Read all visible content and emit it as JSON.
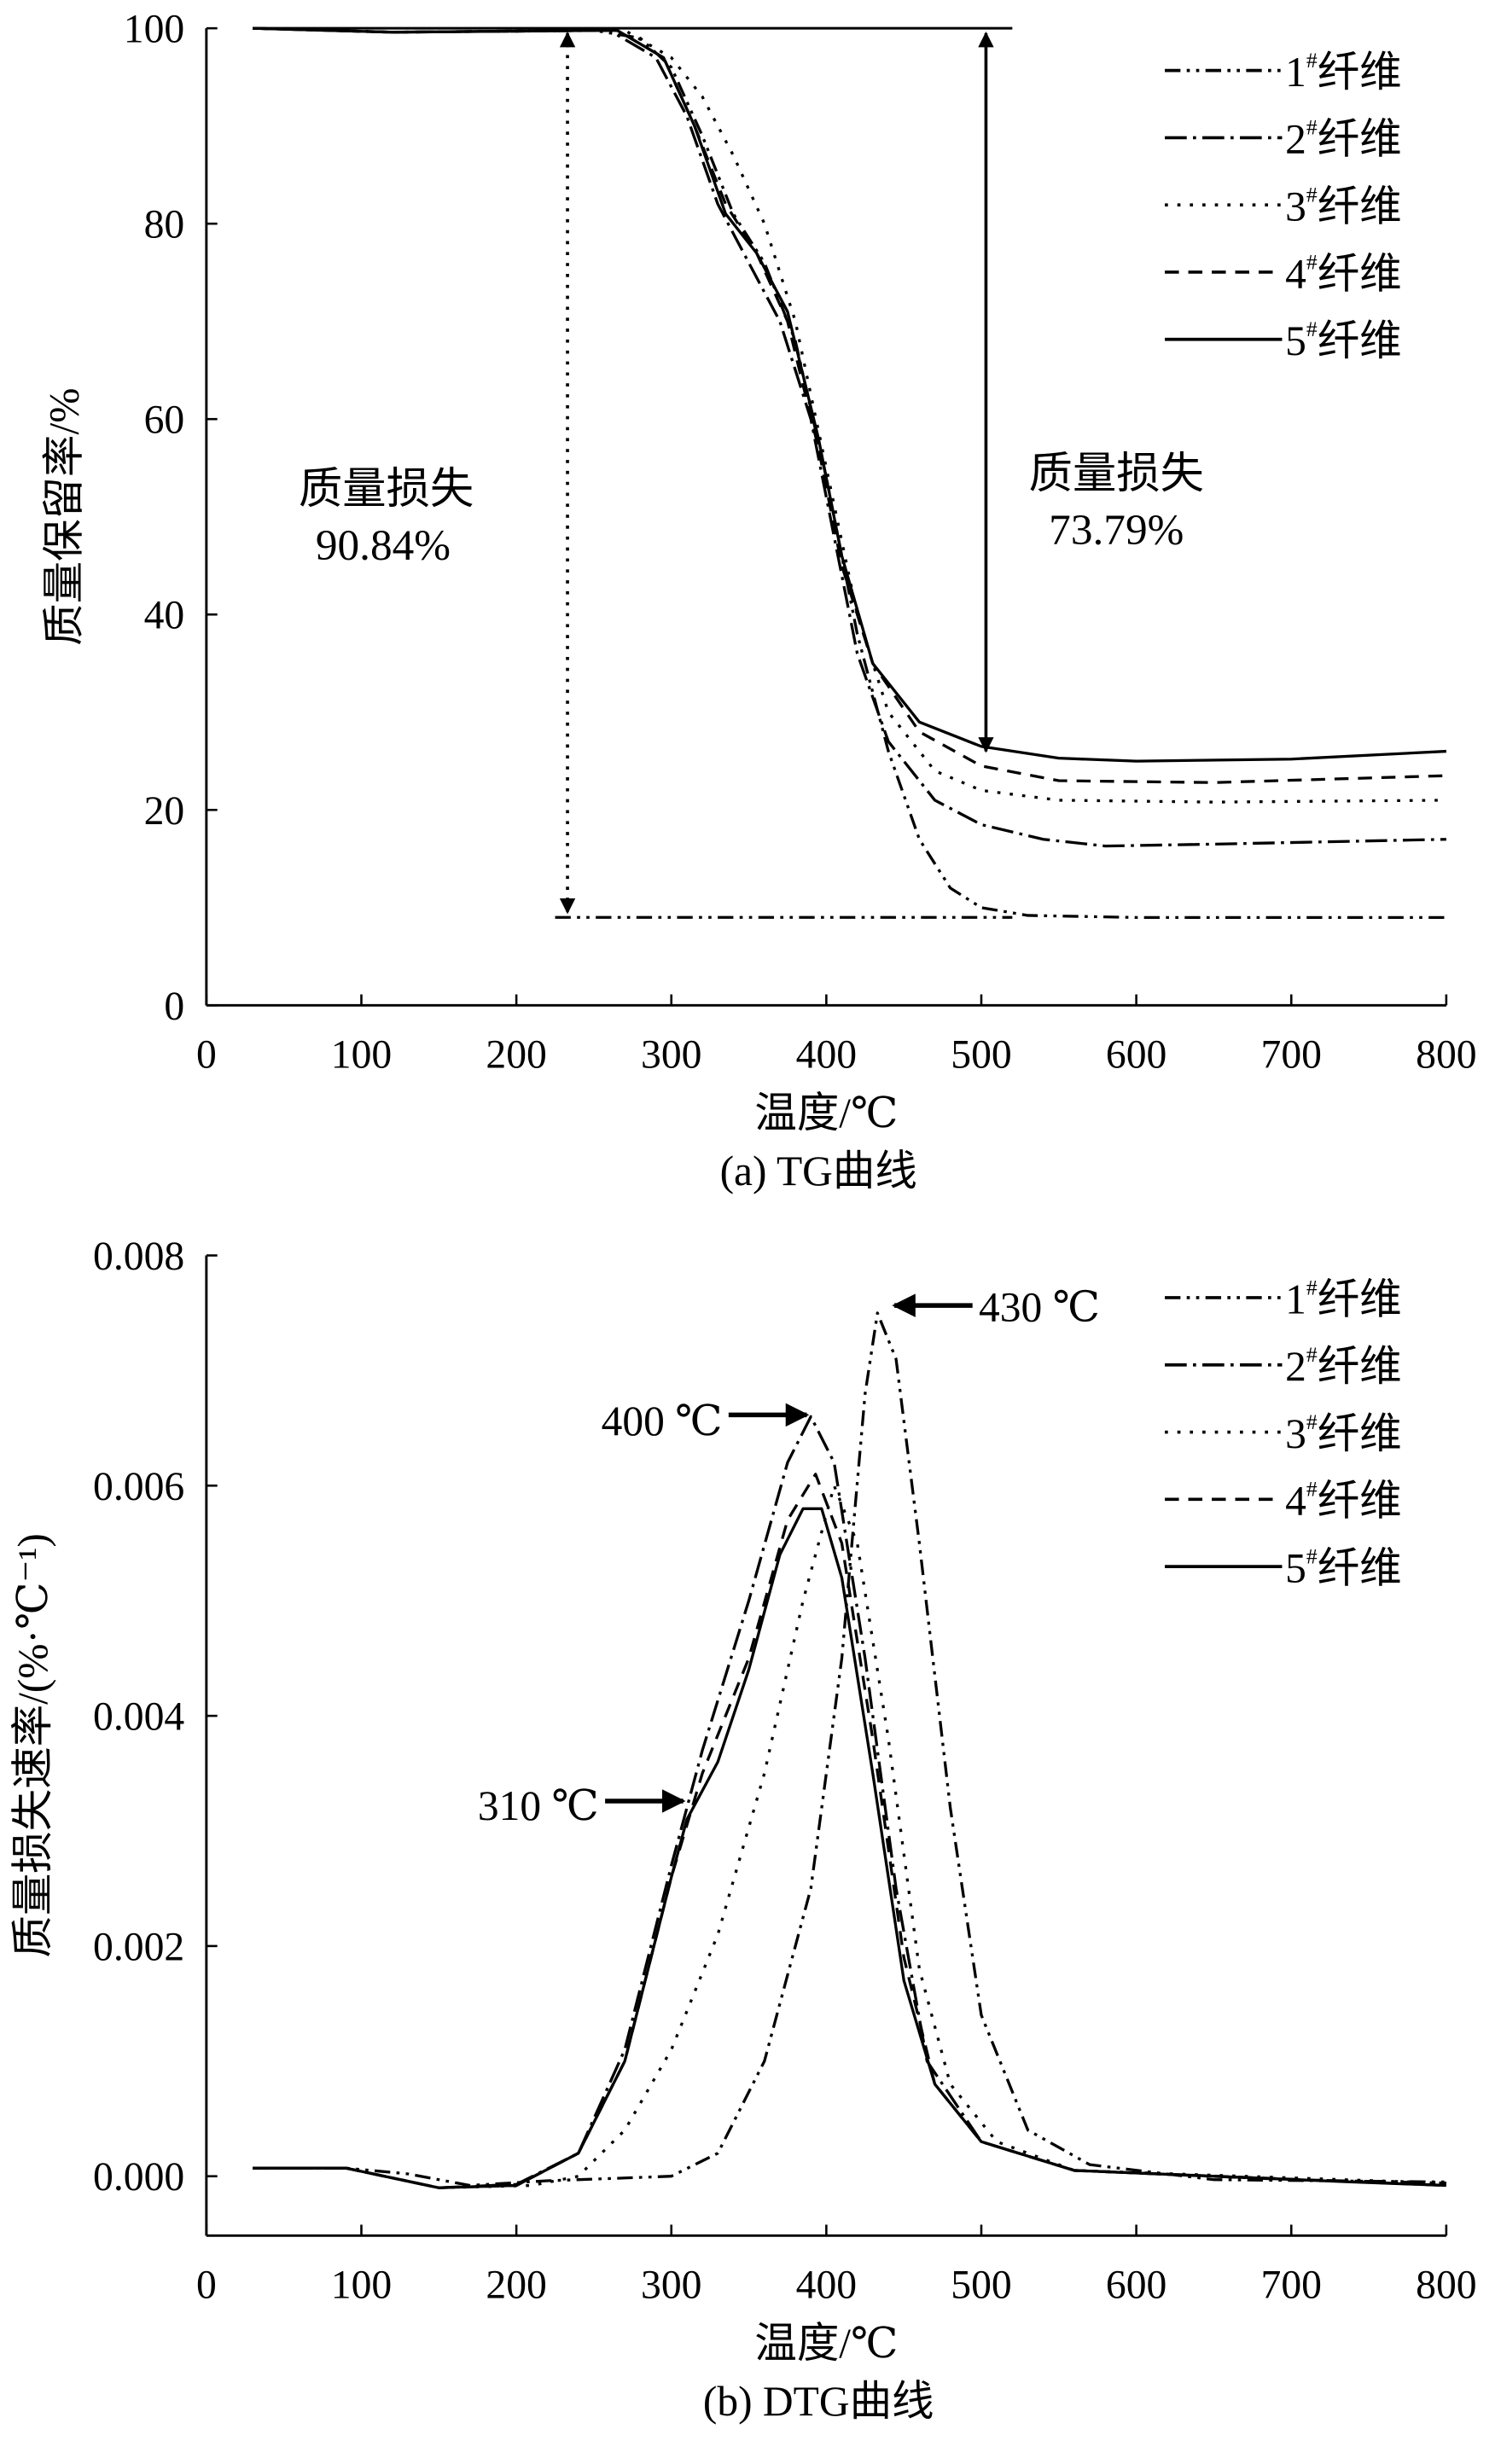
{
  "chart_data": [
    {
      "type": "line",
      "panel": "tg",
      "caption": "(a) TG曲线",
      "xlabel": "温度/℃",
      "ylabel": "质量保留率/%",
      "xlim": [
        0,
        800
      ],
      "ylim": [
        0,
        100
      ],
      "xticks": [
        "0",
        "100",
        "200",
        "300",
        "400",
        "500",
        "600",
        "700",
        "800"
      ],
      "yticks": [
        "0",
        "20",
        "40",
        "60",
        "80",
        "100"
      ],
      "legend": [
        "1#纤维",
        "2#纤维",
        "3#纤维",
        "4#纤维",
        "5#纤维"
      ],
      "legend_position": "top-right",
      "annotations": [
        {
          "title": "质量损失",
          "value": "90.84%"
        },
        {
          "title": "质量损失",
          "value": "73.79%"
        }
      ],
      "series": [
        {
          "name": "1#纤维",
          "points": [
            [
              30,
              100
            ],
            [
              120,
              99.6
            ],
            [
              250,
              99.8
            ],
            [
              280,
              99
            ],
            [
              300,
              96
            ],
            [
              320,
              89
            ],
            [
              340,
              81
            ],
            [
              360,
              76
            ],
            [
              380,
              68
            ],
            [
              400,
              54
            ],
            [
              420,
              38
            ],
            [
              440,
              26
            ],
            [
              460,
              17
            ],
            [
              480,
              12
            ],
            [
              500,
              10
            ],
            [
              530,
              9.2
            ],
            [
              600,
              9
            ],
            [
              800,
              9
            ]
          ]
        },
        {
          "name": "2#纤维",
          "points": [
            [
              30,
              100
            ],
            [
              120,
              99.6
            ],
            [
              260,
              99.8
            ],
            [
              290,
              97
            ],
            [
              310,
              91
            ],
            [
              330,
              82
            ],
            [
              350,
              76
            ],
            [
              370,
              70
            ],
            [
              390,
              60
            ],
            [
              400,
              52
            ],
            [
              420,
              36
            ],
            [
              440,
              27
            ],
            [
              470,
              21
            ],
            [
              500,
              18.5
            ],
            [
              540,
              17
            ],
            [
              580,
              16.3
            ],
            [
              650,
              16.5
            ],
            [
              800,
              17
            ]
          ]
        },
        {
          "name": "3#纤维",
          "points": [
            [
              30,
              100
            ],
            [
              120,
              99.6
            ],
            [
              270,
              99.8
            ],
            [
              300,
              97
            ],
            [
              320,
              93
            ],
            [
              340,
              87
            ],
            [
              360,
              80
            ],
            [
              380,
              70
            ],
            [
              400,
              55
            ],
            [
              420,
              40
            ],
            [
              440,
              30
            ],
            [
              470,
              24
            ],
            [
              500,
              22
            ],
            [
              550,
              21
            ],
            [
              650,
              20.8
            ],
            [
              800,
              21
            ]
          ]
        },
        {
          "name": "4#纤维",
          "points": [
            [
              30,
              100
            ],
            [
              120,
              99.6
            ],
            [
              265,
              99.8
            ],
            [
              295,
              97
            ],
            [
              315,
              90
            ],
            [
              335,
              82
            ],
            [
              355,
              77
            ],
            [
              375,
              70
            ],
            [
              395,
              57
            ],
            [
              410,
              45
            ],
            [
              430,
              35
            ],
            [
              460,
              28
            ],
            [
              500,
              24.5
            ],
            [
              550,
              23
            ],
            [
              650,
              22.8
            ],
            [
              800,
              23.5
            ]
          ]
        },
        {
          "name": "5#纤维",
          "points": [
            [
              30,
              100
            ],
            [
              120,
              99.6
            ],
            [
              265,
              99.8
            ],
            [
              295,
              97
            ],
            [
              315,
              90
            ],
            [
              335,
              81
            ],
            [
              355,
              77
            ],
            [
              375,
              71
            ],
            [
              395,
              58
            ],
            [
              410,
              46
            ],
            [
              430,
              35
            ],
            [
              460,
              29
            ],
            [
              500,
              26.5
            ],
            [
              550,
              25.3
            ],
            [
              600,
              25
            ],
            [
              700,
              25.2
            ],
            [
              800,
              26
            ]
          ]
        }
      ]
    },
    {
      "type": "line",
      "panel": "dtg",
      "caption": "(b) DTG曲线",
      "xlabel": "温度/℃",
      "ylabel": "质量损失速率/(%·℃⁻¹)",
      "xlim": [
        0,
        800
      ],
      "ylim": [
        0,
        0.008
      ],
      "xticks": [
        "0",
        "100",
        "200",
        "300",
        "400",
        "500",
        "600",
        "700",
        "800"
      ],
      "yticks": [
        "0.000",
        "0.002",
        "0.004",
        "0.006",
        "0.008"
      ],
      "legend": [
        "1#纤维",
        "2#纤维",
        "3#纤维",
        "4#纤维",
        "5#纤维"
      ],
      "legend_position": "top-right",
      "annotations": [
        "430 ℃",
        "400 ℃",
        "310 ℃"
      ],
      "series": [
        {
          "name": "1#纤维",
          "points": [
            [
              30,
              7e-05
            ],
            [
              90,
              7e-05
            ],
            [
              130,
              2e-05
            ],
            [
              170,
              -8e-05
            ],
            [
              220,
              -4e-05
            ],
            [
              260,
              -2e-05
            ],
            [
              300,
              0
            ],
            [
              330,
              0.0002
            ],
            [
              360,
              0.001
            ],
            [
              390,
              0.0025
            ],
            [
              410,
              0.0045
            ],
            [
              425,
              0.0068
            ],
            [
              433,
              0.0075
            ],
            [
              445,
              0.0071
            ],
            [
              460,
              0.0055
            ],
            [
              480,
              0.0032
            ],
            [
              500,
              0.0014
            ],
            [
              530,
              0.0004
            ],
            [
              570,
              0.0001
            ],
            [
              650,
              -3e-05
            ],
            [
              800,
              -5e-05
            ]
          ]
        },
        {
          "name": "2#纤维",
          "points": [
            [
              30,
              7e-05
            ],
            [
              90,
              7e-05
            ],
            [
              150,
              -0.0001
            ],
            [
              200,
              -7e-05
            ],
            [
              240,
              0.0002
            ],
            [
              270,
              0.0011
            ],
            [
              300,
              0.0027
            ],
            [
              320,
              0.0037
            ],
            [
              350,
              0.005
            ],
            [
              375,
              0.0062
            ],
            [
              390,
              0.0066
            ],
            [
              405,
              0.0062
            ],
            [
              425,
              0.0045
            ],
            [
              445,
              0.0025
            ],
            [
              465,
              0.001
            ],
            [
              500,
              0.0003
            ],
            [
              560,
              5e-05
            ],
            [
              700,
              -3e-05
            ],
            [
              800,
              -6e-05
            ]
          ]
        },
        {
          "name": "3#纤维",
          "points": [
            [
              30,
              7e-05
            ],
            [
              90,
              7e-05
            ],
            [
              150,
              -0.0001
            ],
            [
              210,
              -8e-05
            ],
            [
              240,
              0
            ],
            [
              270,
              0.0004
            ],
            [
              300,
              0.0011
            ],
            [
              330,
              0.0021
            ],
            [
              360,
              0.0035
            ],
            [
              385,
              0.005
            ],
            [
              405,
              0.006
            ],
            [
              420,
              0.0055
            ],
            [
              440,
              0.0038
            ],
            [
              460,
              0.0018
            ],
            [
              480,
              0.0008
            ],
            [
              510,
              0.0003
            ],
            [
              560,
              5e-05
            ],
            [
              800,
              -6e-05
            ]
          ]
        },
        {
          "name": "4#纤维",
          "points": [
            [
              30,
              7e-05
            ],
            [
              90,
              7e-05
            ],
            [
              150,
              -0.0001
            ],
            [
              200,
              -8e-05
            ],
            [
              240,
              0.0002
            ],
            [
              270,
              0.001
            ],
            [
              300,
              0.0026
            ],
            [
              320,
              0.0035
            ],
            [
              350,
              0.0045
            ],
            [
              375,
              0.0057
            ],
            [
              393,
              0.0061
            ],
            [
              410,
              0.0055
            ],
            [
              430,
              0.0038
            ],
            [
              450,
              0.0019
            ],
            [
              470,
              0.0008
            ],
            [
              500,
              0.0003
            ],
            [
              560,
              5e-05
            ],
            [
              800,
              -8e-05
            ]
          ]
        },
        {
          "name": "5#纤维",
          "points": [
            [
              30,
              7e-05
            ],
            [
              90,
              7e-05
            ],
            [
              150,
              -0.0001
            ],
            [
              200,
              -8e-05
            ],
            [
              240,
              0.0002
            ],
            [
              270,
              0.001
            ],
            [
              300,
              0.0026
            ],
            [
              310,
              0.0031
            ],
            [
              330,
              0.0036
            ],
            [
              350,
              0.0044
            ],
            [
              370,
              0.0054
            ],
            [
              385,
              0.0058
            ],
            [
              397,
              0.0058
            ],
            [
              410,
              0.0052
            ],
            [
              430,
              0.0035
            ],
            [
              450,
              0.0017
            ],
            [
              470,
              0.0008
            ],
            [
              500,
              0.0003
            ],
            [
              560,
              5e-05
            ],
            [
              740,
              -5e-05
            ],
            [
              800,
              -8e-05
            ]
          ]
        }
      ]
    }
  ]
}
